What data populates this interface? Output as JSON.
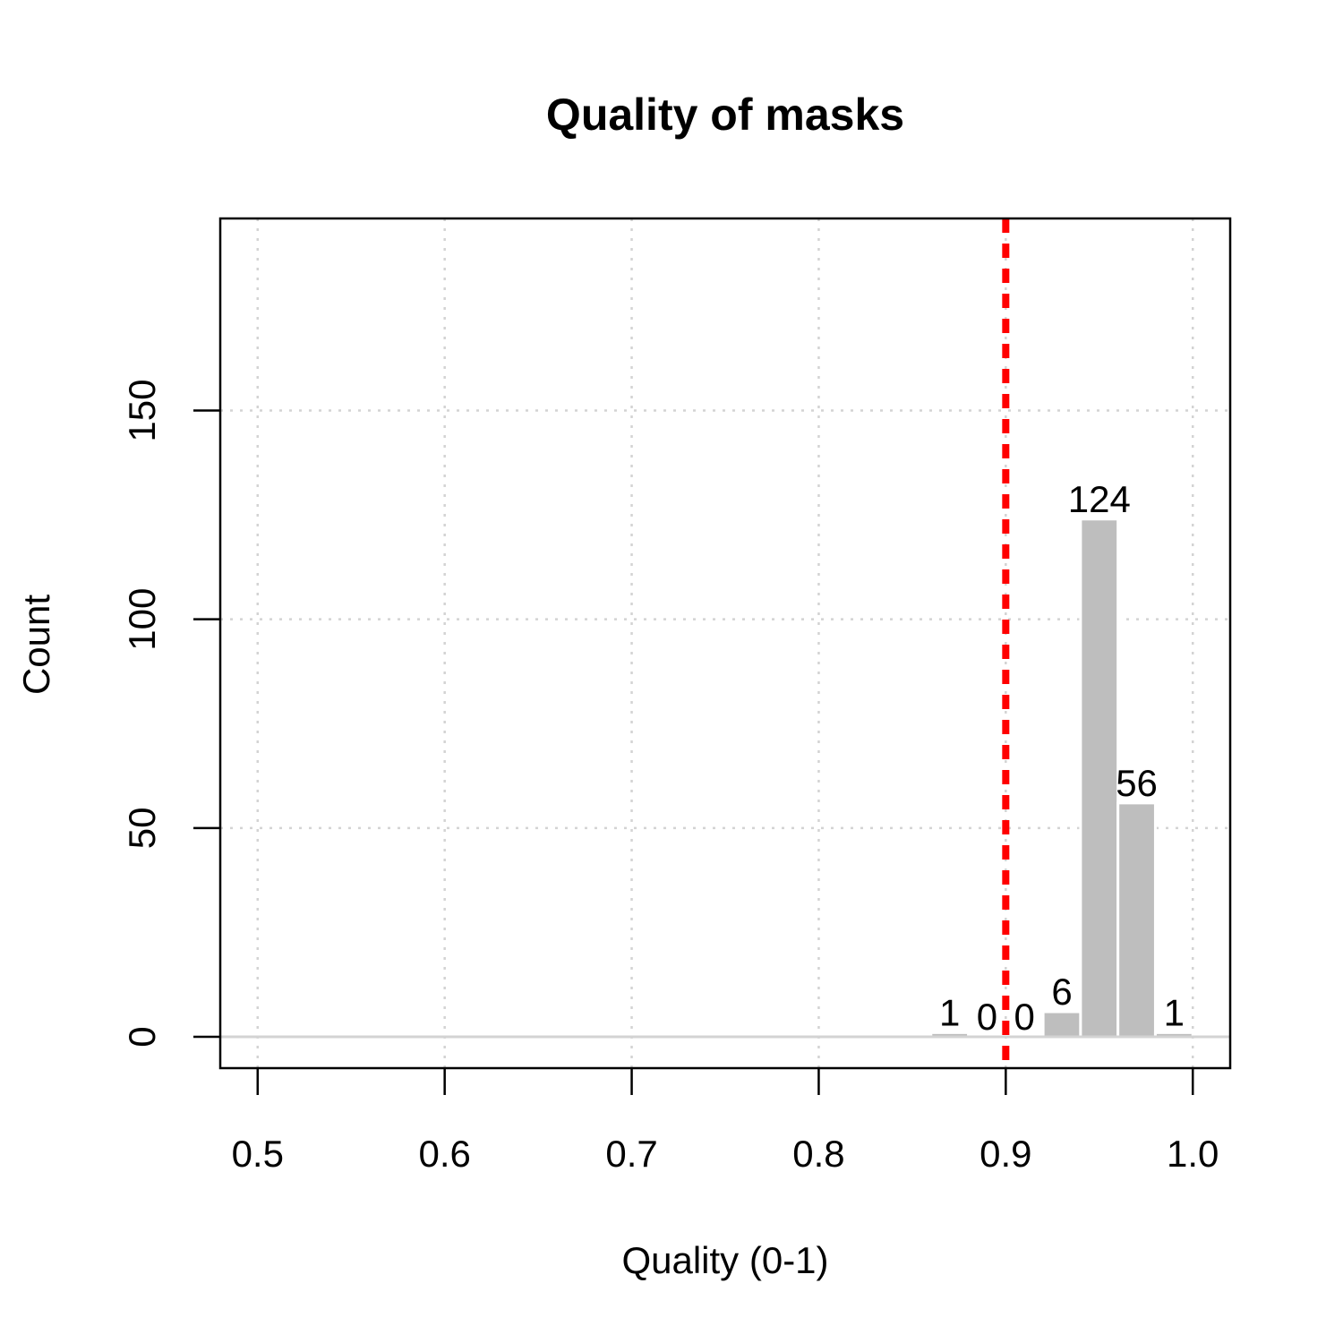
{
  "chart_data": {
    "type": "bar",
    "title": "Quality of masks",
    "xlabel": "Quality (0-1)",
    "ylabel": "Count",
    "xlim": [
      0.48,
      1.02
    ],
    "ylim": [
      -7.5,
      196
    ],
    "x_ticks": [
      0.5,
      0.6,
      0.7,
      0.8,
      0.9,
      1.0
    ],
    "x_tick_labels": [
      "0.5",
      "0.6",
      "0.7",
      "0.8",
      "0.9",
      "1.0"
    ],
    "y_ticks": [
      0,
      50,
      100,
      150
    ],
    "y_tick_labels": [
      "0",
      "50",
      "100",
      "150"
    ],
    "grid": true,
    "bins": [
      {
        "from": 0.86,
        "to": 0.88,
        "count": 1,
        "label": "1"
      },
      {
        "from": 0.88,
        "to": 0.9,
        "count": 0,
        "label": "0"
      },
      {
        "from": 0.9,
        "to": 0.92,
        "count": 0,
        "label": "0"
      },
      {
        "from": 0.92,
        "to": 0.94,
        "count": 6,
        "label": "6"
      },
      {
        "from": 0.94,
        "to": 0.96,
        "count": 124,
        "label": "124"
      },
      {
        "from": 0.96,
        "to": 0.98,
        "count": 56,
        "label": "56"
      },
      {
        "from": 0.98,
        "to": 1.0,
        "count": 1,
        "label": "1"
      }
    ],
    "threshold": 0.9,
    "colors": {
      "bar": "#bebebe",
      "threshold": "#ff0000",
      "grid": "#d3d3d3",
      "baseline": "#d3d3d3",
      "axis": "#000000"
    }
  }
}
